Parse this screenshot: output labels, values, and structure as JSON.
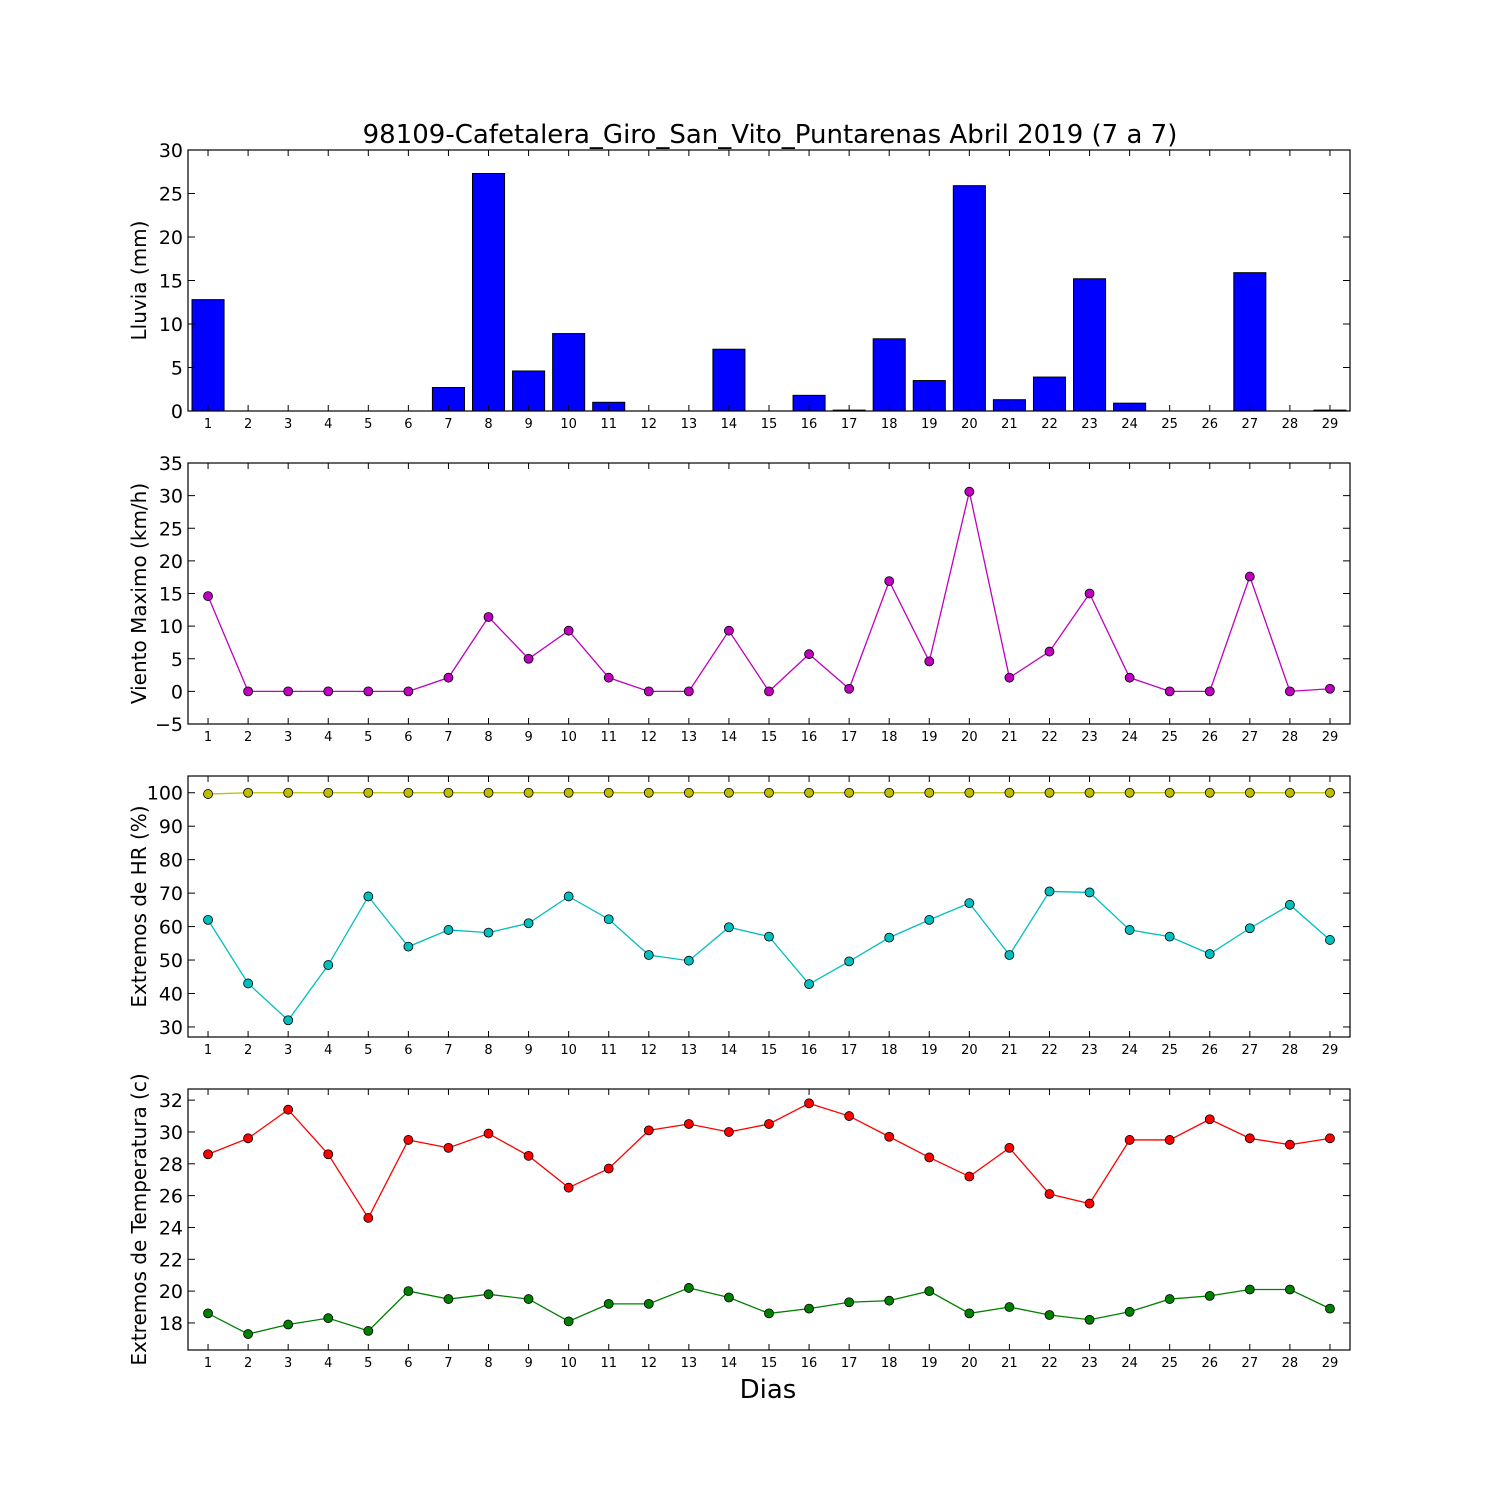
{
  "title": "98109-Cafetalera_Giro_San_Vito_Puntarenas Abril 2019  (7 a 7)",
  "xlabel": "Dias",
  "days": [
    1,
    2,
    3,
    4,
    5,
    6,
    7,
    8,
    9,
    10,
    11,
    12,
    13,
    14,
    15,
    16,
    17,
    18,
    19,
    20,
    21,
    22,
    23,
    24,
    25,
    26,
    27,
    28,
    29
  ],
  "chart_data": [
    {
      "type": "bar",
      "ylabel": "Lluvia (mm)",
      "ylim": [
        0,
        30
      ],
      "yticks": [
        0,
        5,
        10,
        15,
        20,
        25,
        30
      ],
      "grid": false,
      "series": [
        {
          "color": "#0000ff",
          "values": [
            12.8,
            0,
            0,
            0,
            0,
            0,
            2.7,
            27.3,
            4.6,
            8.9,
            1.0,
            0,
            0,
            7.1,
            0,
            1.8,
            0.1,
            8.3,
            3.5,
            25.9,
            1.3,
            3.9,
            15.2,
            0.9,
            0,
            0,
            15.9,
            0,
            0.1
          ]
        }
      ]
    },
    {
      "type": "line",
      "ylabel": "Viento Maximo (km/h)",
      "ylim": [
        -5,
        35
      ],
      "yticks": [
        -5,
        0,
        5,
        10,
        15,
        20,
        25,
        30,
        35
      ],
      "grid": false,
      "series": [
        {
          "color": "#bf00bf",
          "values": [
            14.6,
            0,
            0,
            0,
            0,
            0,
            2.1,
            11.4,
            5.0,
            9.3,
            2.1,
            0,
            0,
            9.3,
            0,
            5.7,
            0.4,
            16.9,
            4.6,
            30.6,
            2.1,
            6.1,
            15.0,
            2.1,
            0,
            0,
            17.6,
            0,
            0.4
          ]
        }
      ]
    },
    {
      "type": "line",
      "ylabel": "Extremos de HR (%)",
      "ylim": [
        27,
        105
      ],
      "yticks": [
        30,
        40,
        50,
        60,
        70,
        80,
        90,
        100
      ],
      "grid": false,
      "series": [
        {
          "color": "#bfbf00",
          "values": [
            99.6,
            100,
            100,
            100,
            100,
            100,
            100,
            100,
            100,
            100,
            100,
            100,
            100,
            100,
            100,
            100,
            100,
            100,
            100,
            100,
            100,
            100,
            100,
            100,
            100,
            100,
            100,
            100,
            100
          ]
        },
        {
          "color": "#00bfbf",
          "values": [
            62,
            43,
            32,
            48.5,
            69,
            54,
            59,
            58.2,
            61,
            69,
            62.2,
            51.5,
            49.8,
            59.8,
            57,
            42.8,
            49.6,
            56.7,
            62,
            67,
            51.5,
            70.5,
            70.2,
            59,
            57,
            51.8,
            59.5,
            66.5,
            56
          ]
        }
      ]
    },
    {
      "type": "line",
      "ylabel": "Extremos de Temperatura (c)",
      "ylim": [
        16.3,
        32.7
      ],
      "yticks": [
        18,
        20,
        22,
        24,
        26,
        28,
        30,
        32
      ],
      "grid": false,
      "series": [
        {
          "color": "#ff0000",
          "values": [
            28.6,
            29.6,
            31.4,
            28.6,
            24.6,
            29.5,
            29.0,
            29.9,
            28.5,
            26.5,
            27.7,
            30.1,
            30.5,
            30.0,
            30.5,
            31.8,
            31.0,
            29.7,
            28.4,
            27.2,
            29.0,
            26.1,
            25.5,
            29.5,
            29.5,
            30.8,
            29.6,
            29.2,
            29.6
          ]
        },
        {
          "color": "#008000",
          "values": [
            18.6,
            17.3,
            17.9,
            18.3,
            17.5,
            20.0,
            19.5,
            19.8,
            19.5,
            18.1,
            19.2,
            19.2,
            20.2,
            19.6,
            18.6,
            18.9,
            19.3,
            19.4,
            20.0,
            18.6,
            19.0,
            18.5,
            18.2,
            18.7,
            19.5,
            19.7,
            20.1,
            20.1,
            18.9
          ]
        }
      ]
    }
  ]
}
